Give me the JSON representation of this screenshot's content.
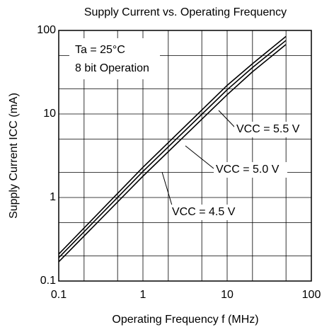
{
  "chart_data": {
    "type": "line",
    "title": "Supply Current vs. Operating Frequency",
    "x_label": "Operating Frequency  f  (MHz)",
    "y_label": "Supply Current  ICC  (mA)",
    "annotations": [
      "Ta = 25°C",
      "8 bit Operation"
    ],
    "x": [
      0.1,
      1,
      10,
      20,
      50
    ],
    "series": [
      {
        "name": "VCC = 5.5 V",
        "color": "#000000",
        "values": [
          0.21,
          2.3,
          22,
          40,
          85
        ]
      },
      {
        "name": "VCC = 5.0 V",
        "color": "#000000",
        "values": [
          0.19,
          2.05,
          19.5,
          36,
          76
        ]
      },
      {
        "name": "VCC = 4.5 V",
        "color": "#000000",
        "values": [
          0.17,
          1.8,
          17,
          32,
          68
        ]
      }
    ],
    "xlim": [
      0.1,
      100
    ],
    "ylim": [
      0.1,
      100
    ],
    "xticks": [
      0.1,
      1,
      10,
      100
    ],
    "yticks": [
      0.1,
      1,
      10,
      100
    ],
    "xgrid": [
      0.2,
      0.5,
      2,
      5,
      20,
      50
    ],
    "ygrid": [
      0.2,
      0.5,
      2,
      5,
      20,
      50
    ],
    "xlog": true,
    "ylog": true,
    "grid": true
  }
}
